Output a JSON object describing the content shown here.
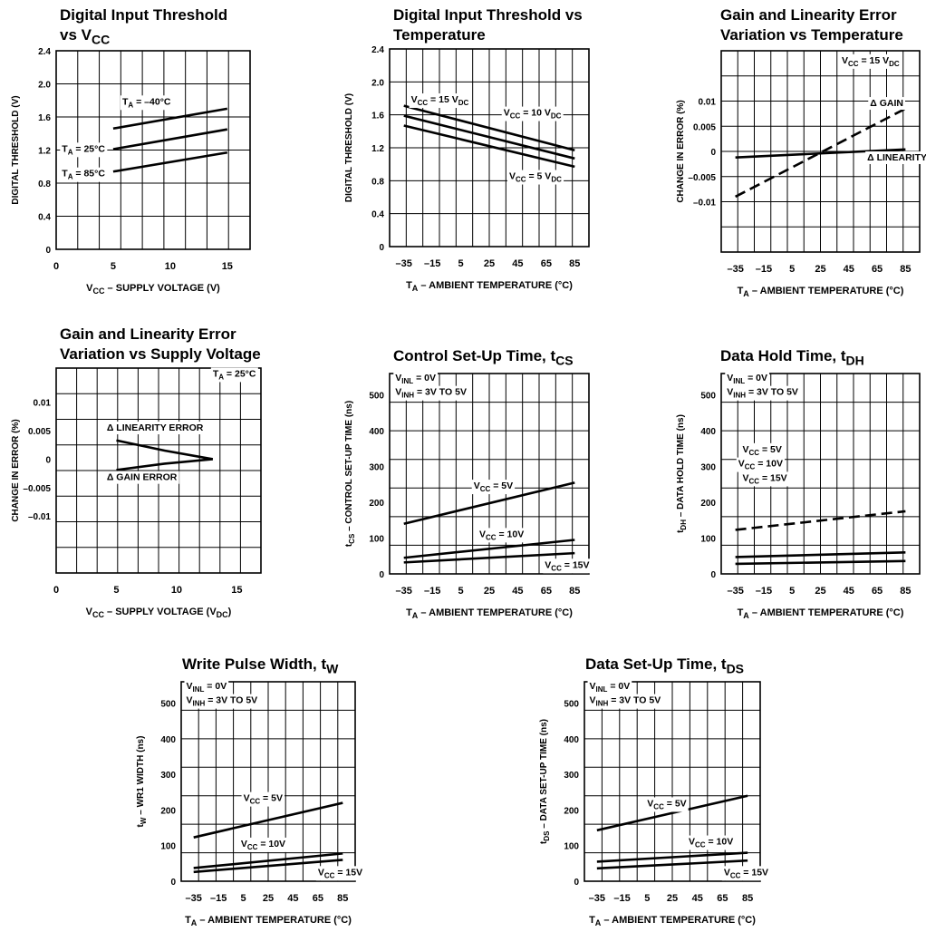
{
  "charts": [
    {
      "title_lines": [
        "Digital Input Threshold",
        "vs V{CC}"
      ],
      "xlabel": "V{CC} – SUPPLY VOLTAGE (V)",
      "ylabel": "DIGITAL THRESHOLD (V)",
      "xticks": [
        "0",
        "5",
        "10",
        "15"
      ],
      "yticks": [
        "0",
        "0.4",
        "0.8",
        "1.2",
        "1.6",
        "2.0",
        "2.4"
      ]
    },
    {
      "title_lines": [
        "Digital Input Threshold vs",
        "Temperature"
      ],
      "xlabel": "T{A} – AMBIENT TEMPERATURE (°C)",
      "ylabel": "DIGITAL THRESHOLD (V)",
      "xticks": [
        "–35",
        "–15",
        "5",
        "25",
        "45",
        "65",
        "85"
      ],
      "yticks": [
        "0",
        "0.4",
        "0.8",
        "1.2",
        "1.6",
        "2.0",
        "2.4"
      ]
    },
    {
      "title_lines": [
        "Gain and Linearity Error",
        "Variation vs Temperature"
      ],
      "xlabel": "T{A} – AMBIENT TEMPERATURE (°C)",
      "ylabel": "CHANGE IN ERROR (%)",
      "xticks": [
        "–35",
        "–15",
        "5",
        "25",
        "45",
        "65",
        "85"
      ],
      "yticks": [
        "–0.01",
        "–0.005",
        "0",
        "0.005",
        "0.01"
      ]
    },
    {
      "title_lines": [
        "Gain and Linearity Error",
        "Variation vs Supply Voltage"
      ],
      "xlabel": "V{CC} – SUPPLY VOLTAGE (V{DC})",
      "ylabel": "CHANGE IN ERROR (%)",
      "xticks": [
        "0",
        "5",
        "10",
        "15"
      ],
      "yticks": [
        "–0.01",
        "–0.005",
        "0",
        "0.005",
        "0.01"
      ]
    },
    {
      "title_lines": [
        "Control Set-Up Time, t{CS}"
      ],
      "xlabel": "T{A} – AMBIENT TEMPERATURE (°C)",
      "ylabel": "t{CS} – CONTROL SET-UP TIME (ns)",
      "xticks": [
        "–35",
        "–15",
        "5",
        "25",
        "45",
        "65",
        "85"
      ],
      "yticks": [
        "0",
        "100",
        "200",
        "300",
        "400",
        "500"
      ]
    },
    {
      "title_lines": [
        "Data Hold Time, t{DH}"
      ],
      "xlabel": "T{A} – AMBIENT TEMPERATURE (°C)",
      "ylabel": "t{DH} – DATA HOLD TIME (ns)",
      "xticks": [
        "–35",
        "–15",
        "5",
        "25",
        "45",
        "65",
        "85"
      ],
      "yticks": [
        "0",
        "100",
        "200",
        "300",
        "400",
        "500"
      ]
    },
    {
      "title_lines": [
        "Write Pulse Width, t{W}"
      ],
      "xlabel": "T{A} – AMBIENT TEMPERATURE (°C)",
      "ylabel": "t{W} – WR1 WIDTH (ns)",
      "xticks": [
        "–35",
        "–15",
        "5",
        "25",
        "45",
        "65",
        "85"
      ],
      "yticks": [
        "0",
        "100",
        "200",
        "300",
        "400",
        "500"
      ]
    },
    {
      "title_lines": [
        "Data Set-Up Time, t{DS}"
      ],
      "xlabel": "T{A} – AMBIENT TEMPERATURE (°C)",
      "ylabel": "t{DS} – DATA SET-UP TIME (ns)",
      "xticks": [
        "–35",
        "–15",
        "5",
        "25",
        "45",
        "65",
        "85"
      ],
      "yticks": [
        "0",
        "100",
        "200",
        "300",
        "400",
        "500"
      ]
    }
  ],
  "chart_data": [
    {
      "type": "line",
      "title": "Digital Input Threshold vs VCC",
      "xlabel": "VCC – SUPPLY VOLTAGE (V)",
      "ylabel": "DIGITAL THRESHOLD (V)",
      "xlim": [
        0,
        17
      ],
      "ylim": [
        0,
        2.4
      ],
      "grid": true,
      "series": [
        {
          "name": "TA = –40°C",
          "x": [
            5,
            15
          ],
          "y": [
            1.46,
            1.7
          ]
        },
        {
          "name": "TA = 25°C",
          "x": [
            5,
            15
          ],
          "y": [
            1.21,
            1.45
          ]
        },
        {
          "name": "TA = 85°C",
          "x": [
            5,
            15
          ],
          "y": [
            0.94,
            1.17
          ]
        }
      ],
      "annotations": [
        {
          "text": "T{A} = –40°C",
          "x": 5.8,
          "y": 1.75
        },
        {
          "text": "T{A} = 25°C",
          "x": 0.5,
          "y": 1.18
        },
        {
          "text": "T{A} = 85°C",
          "x": 0.5,
          "y": 0.88
        }
      ]
    },
    {
      "type": "line",
      "title": "Digital Input Threshold vs Temperature",
      "xlabel": "TA – AMBIENT TEMPERATURE (°C)",
      "ylabel": "DIGITAL THRESHOLD (V)",
      "xlim": [
        -45,
        95
      ],
      "ylim": [
        0,
        2.4
      ],
      "grid": true,
      "series": [
        {
          "name": "VCC = 15 VDC",
          "x": [
            -35,
            85
          ],
          "y": [
            1.71,
            1.17
          ]
        },
        {
          "name": "VCC = 10 VDC",
          "x": [
            -35,
            85
          ],
          "y": [
            1.59,
            1.07
          ]
        },
        {
          "name": "VCC = 5 VDC",
          "x": [
            -35,
            85
          ],
          "y": [
            1.47,
            0.97
          ]
        }
      ],
      "annotations": [
        {
          "text": "V{CC} = 15 V{DC}",
          "x": -30,
          "y": 1.75
        },
        {
          "text": "V{CC} = 10 V{DC}",
          "x": 35,
          "y": 1.59
        },
        {
          "text": "V{CC} = 5 V{DC}",
          "x": 39,
          "y": 0.82
        }
      ]
    },
    {
      "type": "line",
      "title": "Gain and Linearity Error Variation vs Temperature",
      "xlabel": "TA – AMBIENT TEMPERATURE (°C)",
      "ylabel": "CHANGE IN ERROR (%)",
      "xlim": [
        -45,
        95
      ],
      "ylim": [
        -0.02,
        0.02
      ],
      "grid": true,
      "series": [
        {
          "name": "Δ GAIN",
          "x": [
            -35,
            85
          ],
          "y": [
            -0.009,
            0.0085
          ],
          "style": "dashed"
        },
        {
          "name": "Δ LINEARITY",
          "x": [
            -35,
            85
          ],
          "y": [
            -0.0012,
            0.0004
          ]
        }
      ],
      "annotations": [
        {
          "text": "V{CC} = 15 V{DC}",
          "x": 40,
          "y": 0.0175
        },
        {
          "text": "Δ GAIN",
          "x": 60,
          "y": 0.009
        },
        {
          "text": "Δ LINEARITY",
          "x": 58,
          "y": -0.0018
        }
      ]
    },
    {
      "type": "line",
      "title": "Gain and Linearity Error Variation vs Supply Voltage",
      "xlabel": "VCC – SUPPLY VOLTAGE (VDC)",
      "ylabel": "CHANGE IN ERROR (%)",
      "xlim": [
        0,
        17
      ],
      "ylim": [
        -0.02,
        0.016
      ],
      "grid": true,
      "series": [
        {
          "name": "Δ LINEARITY ERROR",
          "x": [
            5,
            9,
            13
          ],
          "y": [
            0.0033,
            0.0015,
            0.0
          ]
        },
        {
          "name": "Δ GAIN ERROR",
          "x": [
            5,
            9,
            13
          ],
          "y": [
            -0.0019,
            -0.0008,
            0.0
          ]
        }
      ],
      "annotations": [
        {
          "text": "T{A} = 25°C",
          "x": 13,
          "y": 0.0145
        },
        {
          "text": "Δ LINEARITY ERROR",
          "x": 4.2,
          "y": 0.005
        },
        {
          "text": "Δ GAIN ERROR",
          "x": 4.2,
          "y": -0.0037
        }
      ]
    },
    {
      "type": "line",
      "title": "Control Set-Up Time, tCS",
      "xlabel": "TA – AMBIENT TEMPERATURE (°C)",
      "ylabel": "tCS – CONTROL SET-UP TIME (ns)",
      "xlim": [
        -45,
        95
      ],
      "ylim": [
        0,
        560
      ],
      "grid": true,
      "series": [
        {
          "name": "VCC = 5V",
          "x": [
            -35,
            85
          ],
          "y": [
            140,
            255
          ]
        },
        {
          "name": "VCC = 10V",
          "x": [
            -35,
            85
          ],
          "y": [
            45,
            95
          ]
        },
        {
          "name": "VCC = 15V",
          "x": [
            -35,
            85
          ],
          "y": [
            32,
            58
          ]
        }
      ],
      "annotations": [
        {
          "text": "V{INL} = 0V",
          "x": -41,
          "y": 540
        },
        {
          "text": "V{INH} = 3V TO 5V",
          "x": -41,
          "y": 500
        },
        {
          "text": "V{CC} = 5V",
          "x": 14,
          "y": 238
        },
        {
          "text": "V{CC} = 10V",
          "x": 18,
          "y": 103
        },
        {
          "text": "V{CC} = 15V",
          "x": 64,
          "y": 17
        }
      ]
    },
    {
      "type": "line",
      "title": "Data Hold Time, tDH",
      "xlabel": "TA – AMBIENT TEMPERATURE (°C)",
      "ylabel": "tDH – DATA HOLD TIME (ns)",
      "xlim": [
        -45,
        95
      ],
      "ylim": [
        0,
        560
      ],
      "grid": true,
      "series": [
        {
          "name": "VCC = 5V",
          "x": [
            -35,
            85
          ],
          "y": [
            123,
            175
          ],
          "style": "dashed"
        },
        {
          "name": "VCC = 10V",
          "x": [
            -35,
            85
          ],
          "y": [
            47,
            60
          ]
        },
        {
          "name": "VCC = 15V",
          "x": [
            -35,
            85
          ],
          "y": [
            28,
            36
          ]
        }
      ],
      "annotations": [
        {
          "text": "V{INL} = 0V",
          "x": -41,
          "y": 540
        },
        {
          "text": "V{INH} = 3V TO 5V",
          "x": -41,
          "y": 500
        },
        {
          "text": "V{CC} = 5V",
          "x": -30,
          "y": 340
        },
        {
          "text": "V{CC} = 10V",
          "x": -33,
          "y": 300
        },
        {
          "text": "V{CC} = 15V",
          "x": -30,
          "y": 260
        }
      ]
    },
    {
      "type": "line",
      "title": "Write Pulse Width, tW",
      "xlabel": "TA – AMBIENT TEMPERATURE (°C)",
      "ylabel": "tW – WR1 WIDTH (ns)",
      "xlim": [
        -45,
        95
      ],
      "ylim": [
        0,
        560
      ],
      "grid": true,
      "series": [
        {
          "name": "VCC = 5V",
          "x": [
            -35,
            85
          ],
          "y": [
            123,
            220
          ]
        },
        {
          "name": "VCC = 10V",
          "x": [
            -35,
            85
          ],
          "y": [
            37,
            78
          ]
        },
        {
          "name": "VCC = 15V",
          "x": [
            -35,
            85
          ],
          "y": [
            26,
            60
          ]
        }
      ],
      "annotations": [
        {
          "text": "V{INL} = 0V",
          "x": -41,
          "y": 540
        },
        {
          "text": "V{INH} = 3V TO 5V",
          "x": -41,
          "y": 500
        },
        {
          "text": "V{CC} = 5V",
          "x": 5,
          "y": 225
        },
        {
          "text": "V{CC} = 10V",
          "x": 3,
          "y": 97
        },
        {
          "text": "V{CC} = 15V",
          "x": 65,
          "y": 17
        }
      ]
    },
    {
      "type": "line",
      "title": "Data Set-Up Time, tDS",
      "xlabel": "TA – AMBIENT TEMPERATURE (°C)",
      "ylabel": "tDS – DATA SET-UP TIME (ns)",
      "xlim": [
        -45,
        95
      ],
      "ylim": [
        0,
        560
      ],
      "grid": true,
      "series": [
        {
          "name": "VCC = 5V",
          "x": [
            -35,
            85
          ],
          "y": [
            143,
            240
          ]
        },
        {
          "name": "VCC = 10V",
          "x": [
            -35,
            85
          ],
          "y": [
            55,
            80
          ]
        },
        {
          "name": "VCC = 15V",
          "x": [
            -35,
            85
          ],
          "y": [
            36,
            58
          ]
        }
      ],
      "annotations": [
        {
          "text": "V{INL} = 0V",
          "x": -41,
          "y": 540
        },
        {
          "text": "V{INH} = 3V TO 5V",
          "x": -41,
          "y": 500
        },
        {
          "text": "V{CC} = 5V",
          "x": 5,
          "y": 210
        },
        {
          "text": "V{CC} = 10V",
          "x": 38,
          "y": 103
        },
        {
          "text": "V{CC} = 15V",
          "x": 66,
          "y": 17
        }
      ]
    }
  ]
}
